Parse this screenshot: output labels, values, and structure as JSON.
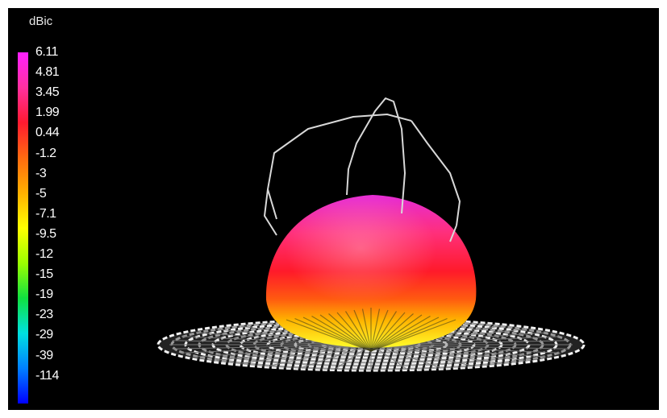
{
  "chart_data": {
    "type": "3d-radiation-pattern",
    "colorbar": {
      "unit": "dBic",
      "ticks": [
        "6.11",
        "4.81",
        "3.45",
        "1.99",
        "0.44",
        "-1.2",
        "-3",
        "-5",
        "-7.1",
        "-9.5",
        "-12",
        "-15",
        "-19",
        "-23",
        "-29",
        "-39",
        "-114"
      ],
      "min": -114,
      "max": 6.11,
      "gradient_stops": [
        "#ff20ff",
        "#ff30a0",
        "#ff1a30",
        "#ff6a10",
        "#ffb000",
        "#ffff00",
        "#9cff00",
        "#10e040",
        "#00e0e0",
        "#0080ff",
        "#0000ff"
      ]
    },
    "background": "#000000",
    "surface_colors": {
      "top": "#e62cd6",
      "upper": "#ff2a5a",
      "middle": "#ff1a1a",
      "lower": "#ff8a00",
      "bottom": "#fffb2a"
    },
    "wire_color": "#d8d8d8",
    "ground_plane_color": "#ffffff"
  }
}
